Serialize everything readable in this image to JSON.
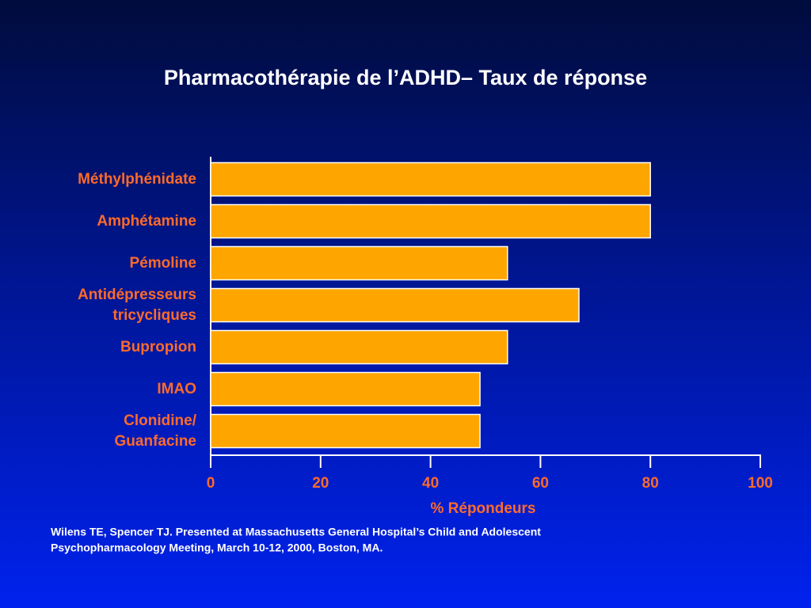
{
  "chart_data": {
    "type": "bar",
    "orientation": "horizontal",
    "title": "Pharmacothérapie de l’ADHD– Taux de réponse",
    "categories": [
      "Méthylphénidate",
      "Amphétamine",
      "Pémoline",
      "Antidépresseurs tricycliques",
      "Bupropion",
      "IMAO",
      "Clonidine/ Guanfacine"
    ],
    "values": [
      80,
      80,
      54,
      67,
      54,
      49,
      49
    ],
    "color": "#ffa500",
    "xlim": [
      0,
      100
    ],
    "xticks": [
      0,
      20,
      40,
      60,
      80,
      100
    ],
    "xlabel": "% Répondeurs",
    "footnote": [
      "Wilens TE, Spencer TJ. Presented at Massachusetts General Hospital’s Child and Adolescent",
      "Psychopharmacology Meeting, March 10-12, 2000, Boston, MA."
    ]
  }
}
